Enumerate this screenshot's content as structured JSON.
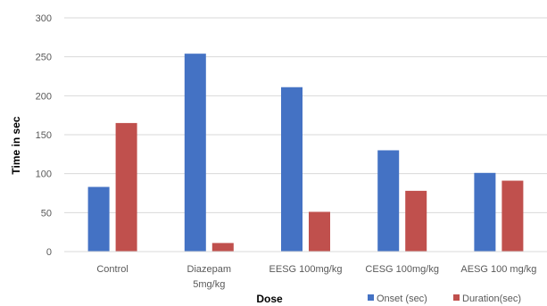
{
  "chart_data": {
    "type": "bar",
    "title": "",
    "xlabel": "Dose",
    "ylabel": "Time in sec",
    "ylim": [
      0,
      300
    ],
    "yticks": [
      0,
      50,
      100,
      150,
      200,
      250,
      300
    ],
    "grid": true,
    "legend_position": "bottom-right",
    "categories": [
      [
        "Control"
      ],
      [
        "Diazepam",
        "5mg/kg"
      ],
      [
        "EESG 100mg/kg"
      ],
      [
        "CESG 100mg/kg"
      ],
      [
        "AESG 100 mg/kg"
      ]
    ],
    "series": [
      {
        "name": "Onset (sec)",
        "color": "#4472C4",
        "values": [
          83,
          254,
          211,
          130,
          101
        ]
      },
      {
        "name": "Duration(sec)",
        "color": "#C0504D",
        "values": [
          165,
          11,
          51,
          78,
          91
        ]
      }
    ]
  }
}
